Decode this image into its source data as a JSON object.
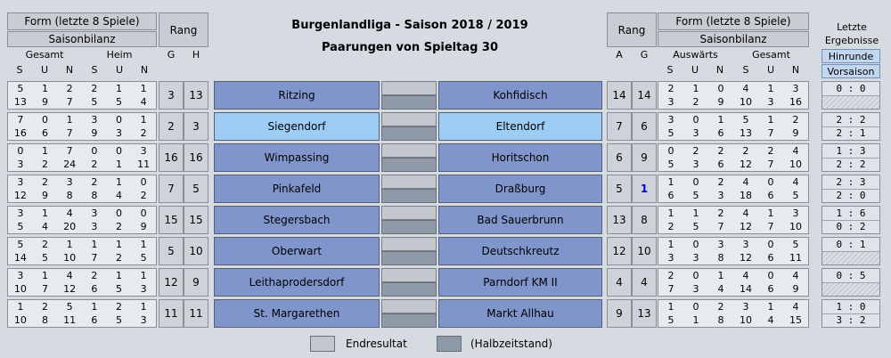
{
  "header": {
    "title": "Burgenlandliga  -  Saison 2018 / 2019",
    "subtitle": "Paarungen von Spieltag 30",
    "form_label": "Form (letzte 8 Spiele)",
    "saisonbilanz_label": "Saisonbilanz",
    "rang_label": "Rang",
    "gesamt_label": "Gesamt",
    "heim_label": "Heim",
    "auswaerts_label": "Auswärts",
    "col_s": "S",
    "col_u": "U",
    "col_n": "N",
    "col_g": "G",
    "col_h": "H",
    "col_a": "A",
    "letzte_label": "Letzte",
    "ergebnisse_label": "Ergebnisse",
    "hinrunde_label": "Hinrunde",
    "vorsaison_label": "Vorsaison"
  },
  "matches": [
    {
      "home": "Ritzing",
      "away": "Kohfidisch",
      "score_full": "",
      "score_half": "",
      "home_stats_top": [
        "5",
        "1",
        "2",
        "2",
        "1",
        "1"
      ],
      "home_stats_bot": [
        "13",
        "9",
        "7",
        "5",
        "5",
        "4"
      ],
      "rank_g": "3",
      "rank_h": "13",
      "rank_a": "14",
      "rank_ag": "14",
      "away_stats_top": [
        "2",
        "1",
        "0",
        "4",
        "1",
        "3"
      ],
      "away_stats_bot": [
        "3",
        "2",
        "9",
        "10",
        "3",
        "16"
      ],
      "hinrunde": "0 : 0",
      "vorsaison": ""
    },
    {
      "home": "Siegendorf",
      "away": "Eltendorf",
      "score_full": "",
      "score_half": "",
      "home_stats_top": [
        "7",
        "0",
        "1",
        "3",
        "0",
        "1"
      ],
      "home_stats_bot": [
        "16",
        "6",
        "7",
        "9",
        "3",
        "2"
      ],
      "rank_g": "2",
      "rank_h": "3",
      "rank_a": "7",
      "rank_ag": "6",
      "away_stats_top": [
        "3",
        "0",
        "1",
        "5",
        "1",
        "2"
      ],
      "away_stats_bot": [
        "5",
        "3",
        "6",
        "13",
        "7",
        "9"
      ],
      "hinrunde": "2 : 2",
      "vorsaison": "2 : 1"
    },
    {
      "home": "Wimpassing",
      "away": "Horitschon",
      "score_full": "",
      "score_half": "",
      "home_stats_top": [
        "0",
        "1",
        "7",
        "0",
        "0",
        "3"
      ],
      "home_stats_bot": [
        "3",
        "2",
        "24",
        "2",
        "1",
        "11"
      ],
      "rank_g": "16",
      "rank_h": "16",
      "rank_a": "6",
      "rank_ag": "9",
      "away_stats_top": [
        "0",
        "2",
        "2",
        "2",
        "2",
        "4"
      ],
      "away_stats_bot": [
        "5",
        "3",
        "6",
        "12",
        "7",
        "10"
      ],
      "hinrunde": "1 : 3",
      "vorsaison": "2 : 2"
    },
    {
      "home": "Pinkafeld",
      "away": "Draßburg",
      "score_full": "",
      "score_half": "",
      "home_stats_top": [
        "3",
        "2",
        "3",
        "2",
        "1",
        "0"
      ],
      "home_stats_bot": [
        "12",
        "9",
        "8",
        "8",
        "4",
        "2"
      ],
      "rank_g": "7",
      "rank_h": "5",
      "rank_a": "5",
      "rank_ag": "1",
      "away_stats_top": [
        "1",
        "0",
        "2",
        "4",
        "0",
        "4"
      ],
      "away_stats_bot": [
        "6",
        "5",
        "3",
        "18",
        "6",
        "5"
      ],
      "hinrunde": "2 : 3",
      "vorsaison": "2 : 0"
    },
    {
      "home": "Stegersbach",
      "away": "Bad Sauerbrunn",
      "score_full": "",
      "score_half": "",
      "home_stats_top": [
        "3",
        "1",
        "4",
        "3",
        "0",
        "0"
      ],
      "home_stats_bot": [
        "5",
        "4",
        "20",
        "3",
        "2",
        "9"
      ],
      "rank_g": "15",
      "rank_h": "15",
      "rank_a": "13",
      "rank_ag": "8",
      "away_stats_top": [
        "1",
        "1",
        "2",
        "4",
        "1",
        "3"
      ],
      "away_stats_bot": [
        "2",
        "5",
        "7",
        "12",
        "7",
        "10"
      ],
      "hinrunde": "1 : 6",
      "vorsaison": "0 : 2"
    },
    {
      "home": "Oberwart",
      "away": "Deutschkreutz",
      "score_full": "",
      "score_half": "",
      "home_stats_top": [
        "5",
        "2",
        "1",
        "1",
        "1",
        "1"
      ],
      "home_stats_bot": [
        "14",
        "5",
        "10",
        "7",
        "2",
        "5"
      ],
      "rank_g": "5",
      "rank_h": "10",
      "rank_a": "12",
      "rank_ag": "10",
      "away_stats_top": [
        "1",
        "0",
        "3",
        "3",
        "0",
        "5"
      ],
      "away_stats_bot": [
        "3",
        "3",
        "8",
        "12",
        "6",
        "11"
      ],
      "hinrunde": "0 : 1",
      "vorsaison": ""
    },
    {
      "home": "Leithaprodersdorf",
      "away": "Parndorf KM II",
      "score_full": "",
      "score_half": "",
      "home_stats_top": [
        "3",
        "1",
        "4",
        "2",
        "1",
        "1"
      ],
      "home_stats_bot": [
        "10",
        "7",
        "12",
        "6",
        "5",
        "3"
      ],
      "rank_g": "12",
      "rank_h": "9",
      "rank_a": "4",
      "rank_ag": "4",
      "away_stats_top": [
        "2",
        "0",
        "1",
        "4",
        "0",
        "4"
      ],
      "away_stats_bot": [
        "7",
        "3",
        "4",
        "14",
        "6",
        "9"
      ],
      "hinrunde": "0 : 5",
      "vorsaison": ""
    },
    {
      "home": "St. Margarethen",
      "away": "Markt Allhau",
      "score_full": "",
      "score_half": "",
      "home_stats_top": [
        "1",
        "2",
        "5",
        "1",
        "2",
        "1"
      ],
      "home_stats_bot": [
        "10",
        "8",
        "11",
        "6",
        "5",
        "3"
      ],
      "rank_g": "11",
      "rank_h": "11",
      "rank_a": "9",
      "rank_ag": "13",
      "away_stats_top": [
        "1",
        "0",
        "2",
        "3",
        "1",
        "4"
      ],
      "away_stats_bot": [
        "5",
        "1",
        "8",
        "10",
        "4",
        "15"
      ],
      "hinrunde": "1 : 0",
      "vorsaison": "3 : 2"
    }
  ],
  "legend": {
    "endresultat": "Endresultat",
    "halbzeit": "(Halbzeitstand)"
  },
  "colors": {
    "team_bg": "#7f95cc",
    "team_highlight": "#9dcdf5"
  }
}
